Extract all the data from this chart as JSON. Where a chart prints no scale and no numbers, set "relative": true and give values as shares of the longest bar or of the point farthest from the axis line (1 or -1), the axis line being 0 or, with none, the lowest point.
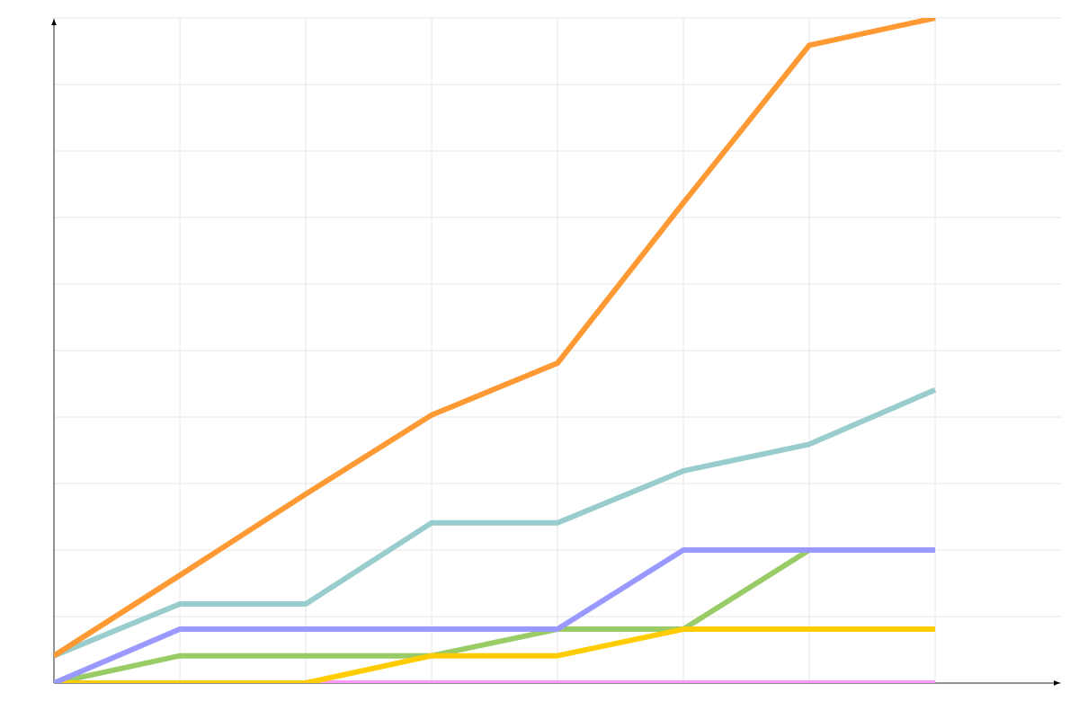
{
  "chart_data": {
    "type": "line",
    "relative": true,
    "grid": true,
    "tick_labels": false,
    "marker": "none",
    "line_style": "solid",
    "categories": [
      null,
      null,
      null,
      null,
      null,
      null,
      null,
      null
    ],
    "series": [
      {
        "color": "#ff99ff",
        "values": [
          null,
          null,
          0,
          0,
          0,
          0,
          0,
          0
        ]
      },
      {
        "color": "#99cc66",
        "values": [
          0,
          0.041,
          0.041,
          0.041,
          0.081,
          0.081,
          0.2,
          null
        ]
      },
      {
        "color": "#ffcc00",
        "values": [
          0,
          0,
          0,
          0.041,
          0.041,
          0.081,
          0.081,
          0.081
        ]
      },
      {
        "color": "#9999ff",
        "values": [
          0,
          0.081,
          0.081,
          0.081,
          0.081,
          0.2,
          0.2,
          0.2
        ]
      },
      {
        "color": "#99cccc",
        "values": [
          0.041,
          0.119,
          0.119,
          0.241,
          0.241,
          0.319,
          0.359,
          0.441
        ]
      },
      {
        "color": "#ff9933",
        "values": [
          0.041,
          0.162,
          0.284,
          0.403,
          0.481,
          0.722,
          0.959,
          1
        ]
      }
    ]
  }
}
